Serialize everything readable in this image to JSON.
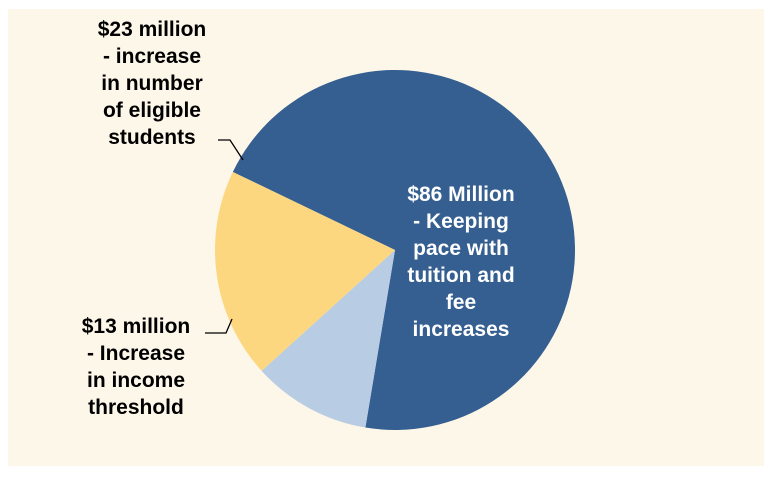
{
  "chart_data": {
    "type": "pie",
    "unit": "million",
    "slices": [
      {
        "label": "$86 Million\n- Keeping\npace with\ntuition and\nfee\nincreases",
        "value": 86,
        "color": "#355F91",
        "text_color": "#FFFFFF"
      },
      {
        "label": "$13 million\n- Increase\nin income\nthreshold",
        "value": 13,
        "color": "#B8CCE4",
        "text_color": "#000000"
      },
      {
        "label": "$23 million\n- increase\nin number\nof eligible\nstudents",
        "value": 23,
        "color": "#FCD77F",
        "text_color": "#000000"
      }
    ],
    "colors": {
      "panel_background": "#FDF7E9",
      "label_text": "#000000",
      "leader_line": "#000000"
    }
  }
}
